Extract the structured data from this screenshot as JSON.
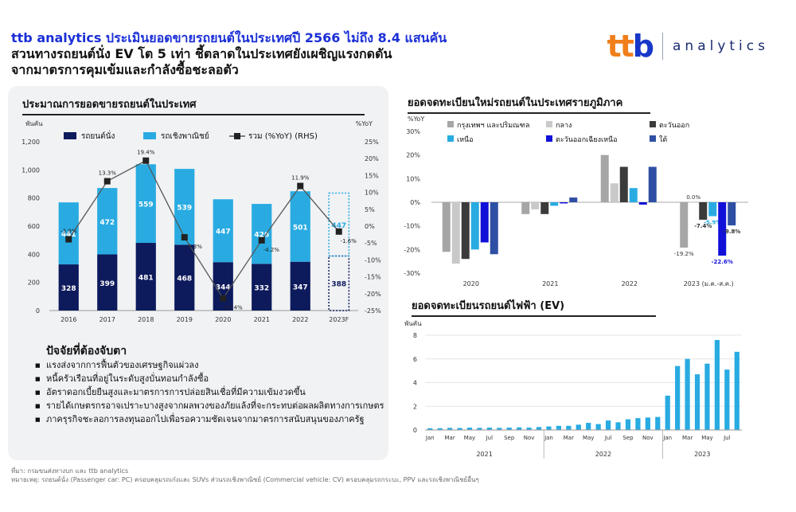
{
  "headline": {
    "line1": "ttb analytics ประเมินยอดขายรถยนต์ในประเทศปี 2566 ไม่ถึง 8.4 แสนคัน",
    "line2": "สวนทางรถยนต์นั่ง EV โต 5 เท่า ชี้ตลาดในประเทศยังเผชิญแรงกดดัน",
    "line3": "จากมาตรการคุมเข้มและกำลังซื้อชะลอตัว"
  },
  "logo": {
    "mark": "ttb",
    "text": "analytics"
  },
  "colors": {
    "passenger": "#0d1a5c",
    "commercial": "#29abe2",
    "line": "#555555",
    "headline": "#1a2fd6"
  },
  "factors": {
    "title": "ปัจจัยที่ต้องจับตา",
    "items": [
      "แรงส่งจากการฟื้นตัวของเศรษฐกิจแผ่วลง",
      "หนี้ครัวเรือนที่อยู่ในระดับสูงบั่นทอนกำลังซื้อ",
      "อัตราดอกเบี้ยยืนสูงและมาตรการการปล่อยสินเชื่อที่มีความเข้มงวดขึ้น",
      "รายได้เกษตรกรอาจเปราะบางสูงจากผลพวงของภัยแล้งที่จะกระทบต่อผลผลิตทางการเกษตร",
      "ภาครุรกิจชะลอการลงทุนออกไปเพื่อรอความชัดเจนจากมาตรการสนับสนุนของภาครัฐ"
    ]
  },
  "footnote": {
    "line1": "ที่มา: กรมขนส่งทางบก และ ttb analytics",
    "line2": "หมายเหตุ: รถยนต์นั่ง (Passenger car: PC) ครอบคลุมรถเก๋งและ SUVs ส่วนรถเชิงพาณิชย์ (Commercial vehicle: CV) ครอบคลุมรถกระบะ, PPV และรถเชิงพาณิชย์อื่นๆ"
  },
  "chart_data": [
    {
      "type": "bar",
      "title": "ประมาณการยอดขายรถยนต์ในประเทศ",
      "ylabel": "พันคัน",
      "y2label": "%YoY",
      "ylim": [
        0,
        1200
      ],
      "y2lim": [
        -25,
        25
      ],
      "yticks": [
        "0",
        "200",
        "400",
        "600",
        "800",
        "1,000",
        "1,200"
      ],
      "y2ticks": [
        "-25%",
        "-20%",
        "-15%",
        "-10%",
        "-5%",
        "0%",
        "5%",
        "10%",
        "15%",
        "20%",
        "25%"
      ],
      "categories": [
        "2016",
        "2017",
        "2018",
        "2019",
        "2020",
        "2021",
        "2022",
        "2023F"
      ],
      "legend": [
        "รถยนต์นั่ง",
        "รถเชิงพาณิชย์",
        "รวม (%YoY) (RHS)"
      ],
      "series": [
        {
          "name": "รถยนต์นั่ง",
          "values": [
            328,
            399,
            481,
            468,
            344,
            332,
            347,
            388
          ]
        },
        {
          "name": "รถเชิงพาณิชย์",
          "values": [
            441,
            472,
            559,
            539,
            447,
            426,
            501,
            447
          ]
        },
        {
          "name": "รวม (%YoY) (RHS)",
          "values": [
            -3.9,
            13.3,
            19.4,
            -3.3,
            -21.4,
            -4.2,
            11.9,
            -1.6
          ]
        }
      ],
      "line_labels": [
        "-3.9%",
        "13.3%",
        "19.4%",
        "-3.3%",
        "-21.4%",
        "-4.2%",
        "11.9%",
        "-1.6%"
      ],
      "forecast_category": "2023F"
    },
    {
      "type": "bar",
      "title": "ยอดจดทะเบียนใหม่รถยนต์ในประเทศรายภูมิภาค",
      "ylabel": "%YoY",
      "ylim": [
        -30,
        30
      ],
      "yticks": [
        "-30%",
        "-20%",
        "-10%",
        "0%",
        "10%",
        "20%",
        "30%"
      ],
      "categories": [
        "2020",
        "2021",
        "2022",
        "2023 (ม.ค.-ส.ค.)"
      ],
      "series": [
        {
          "name": "กรุงเทพฯ และปริมณฑล",
          "color": "#a6a6a6",
          "values": [
            -21,
            -5,
            20,
            -19.2
          ]
        },
        {
          "name": "กลาง",
          "color": "#c9c9c9",
          "values": [
            -26,
            -3,
            8,
            0.0
          ]
        },
        {
          "name": "ตะวันออก",
          "color": "#3b3b3b",
          "values": [
            -24,
            -5,
            15,
            -7.4
          ]
        },
        {
          "name": "เหนือ",
          "color": "#29abe2",
          "values": [
            -20,
            -1.5,
            6,
            -5.9
          ]
        },
        {
          "name": "ตะวันออกเฉียงเหนือ",
          "color": "#1010d8",
          "values": [
            -17,
            -0.5,
            -1,
            -22.6
          ]
        },
        {
          "name": "ใต้",
          "color": "#2e4fa3",
          "values": [
            -22,
            2,
            15,
            -9.8
          ]
        }
      ],
      "value_labels_2023": [
        "-19.2%",
        "0.0%",
        "-7.4%",
        "-5.9%",
        "-22.6%",
        "-9.8%"
      ]
    },
    {
      "type": "bar",
      "title": "ยอดจดทะเบียนรถยนต์ไฟฟ้า (EV)",
      "ylabel": "พันคัน",
      "ylim": [
        0,
        8
      ],
      "yticks": [
        "0",
        "2",
        "4",
        "6",
        "8"
      ],
      "month_ticks": [
        "Jan",
        "Mar",
        "May",
        "Jul",
        "Sep",
        "Nov",
        "Jan",
        "Mar",
        "May",
        "Jul",
        "Sep",
        "Nov",
        "Jan",
        "Mar",
        "May",
        "Jul"
      ],
      "year_groups": [
        "2021",
        "2022",
        "2023"
      ],
      "values": [
        0.15,
        0.15,
        0.18,
        0.17,
        0.2,
        0.18,
        0.2,
        0.18,
        0.2,
        0.22,
        0.2,
        0.25,
        0.3,
        0.35,
        0.35,
        0.45,
        0.6,
        0.5,
        0.8,
        0.65,
        0.9,
        1.0,
        1.05,
        1.1,
        2.9,
        5.4,
        6.0,
        4.7,
        5.6,
        7.6,
        5.1,
        6.6
      ]
    }
  ]
}
